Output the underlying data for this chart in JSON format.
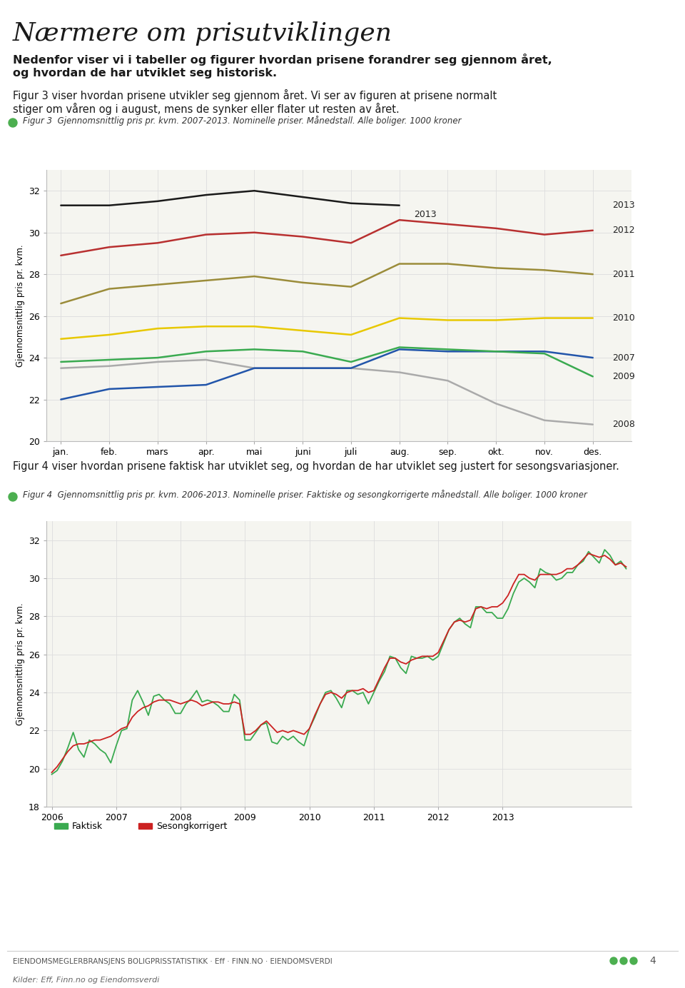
{
  "title_main": "Nærmere om prisutviklingen",
  "intro_text1": "Nedenfor viser vi i tabeller og figurer hvordan prisene forandrer seg gjennom året,",
  "intro_text2": "og hvordan de har utviklet seg historisk.",
  "fig3_desc": "Figur 3 viser hvordan prisene utvikler seg gjennom året. Vi ser av figuren at prisene normalt",
  "fig3_desc2": "stiger om våren og i august, mens de synker eller flater ut resten av året.",
  "fig3_label": "Figur 3  Gjennomsnittlig pris pr. kvm. 2007-2013. Nominelle priser. Månedstall. Alle boliger. 1000 kroner",
  "fig4_desc": "Figur 4 viser hvordan prisene faktisk har utviklet seg, og hvordan de har utviklet seg justert for sesongsvariasjoner.",
  "fig4_label": "Figur 4  Gjennomsnittlig pris pr. kvm. 2006-2013. Nominelle priser. Faktiske og sesongkorrigerte månedstall. Alle boliger. 1000 kroner",
  "ylabel": "Gjennomsnittlig pris pr. kvm.",
  "fig3_xlabel": [
    "jan.",
    "feb.",
    "mars",
    "apr.",
    "mai",
    "juni",
    "juli",
    "aug.",
    "sep.",
    "okt.",
    "nov.",
    "des."
  ],
  "fig3_ylim": [
    20,
    33
  ],
  "fig3_yticks": [
    20,
    22,
    24,
    26,
    28,
    30,
    32
  ],
  "fig4_ylim": [
    18,
    33
  ],
  "fig4_yticks": [
    18,
    20,
    22,
    24,
    26,
    28,
    30,
    32
  ],
  "fig3_series": {
    "2013": {
      "color": "#1a1a1a",
      "values": [
        31.3,
        31.3,
        31.5,
        31.8,
        32.0,
        31.7,
        31.4,
        31.3,
        null,
        null,
        null,
        null
      ],
      "label_idx": 7,
      "label_val": 31.3
    },
    "2012": {
      "color": "#b83030",
      "values": [
        28.9,
        29.3,
        29.5,
        29.9,
        30.0,
        29.8,
        29.5,
        30.6,
        30.4,
        30.2,
        29.9,
        30.1
      ],
      "label_idx": 11,
      "label_val": 30.1
    },
    "2011": {
      "color": "#9b8c3a",
      "values": [
        26.6,
        27.3,
        27.5,
        27.7,
        27.9,
        27.6,
        27.4,
        28.5,
        28.5,
        28.3,
        28.2,
        28.0
      ],
      "label_idx": 11,
      "label_val": 28.0
    },
    "2010": {
      "color": "#e8c800",
      "values": [
        24.9,
        25.1,
        25.4,
        25.5,
        25.5,
        25.3,
        25.1,
        25.9,
        25.8,
        25.8,
        25.9,
        25.9
      ],
      "label_idx": 11,
      "label_val": 25.9
    },
    "2009": {
      "color": "#3aaa50",
      "values": [
        23.8,
        23.9,
        24.0,
        24.3,
        24.4,
        24.3,
        23.8,
        24.5,
        24.4,
        24.3,
        24.2,
        23.1
      ],
      "label_idx": 11,
      "label_val": 23.1
    },
    "2007": {
      "color": "#2255aa",
      "values": [
        22.0,
        22.5,
        22.6,
        22.7,
        23.5,
        23.5,
        23.5,
        24.4,
        24.3,
        24.3,
        24.3,
        24.0
      ],
      "label_idx": 11,
      "label_val": 24.0
    },
    "2008": {
      "color": "#aaaaaa",
      "values": [
        23.5,
        23.6,
        23.8,
        23.9,
        23.5,
        23.5,
        23.5,
        23.3,
        22.9,
        21.8,
        21.0,
        20.8
      ],
      "label_idx": 11,
      "label_val": 20.8
    }
  },
  "fig4_faktisk": [
    19.7,
    19.9,
    20.4,
    21.1,
    21.9,
    21.0,
    20.6,
    21.5,
    21.3,
    21.0,
    20.8,
    20.3,
    21.2,
    22.0,
    22.1,
    23.6,
    24.1,
    23.5,
    22.8,
    23.8,
    23.9,
    23.6,
    23.4,
    22.9,
    22.9,
    23.4,
    23.7,
    24.1,
    23.5,
    23.6,
    23.5,
    23.3,
    23.0,
    23.0,
    23.9,
    23.6,
    21.5,
    21.5,
    21.9,
    22.3,
    22.4,
    21.4,
    21.3,
    21.7,
    21.5,
    21.7,
    21.4,
    21.2,
    22.1,
    22.7,
    23.4,
    24.0,
    24.1,
    23.7,
    23.2,
    24.1,
    24.1,
    23.9,
    24.0,
    23.4,
    24.0,
    24.6,
    25.1,
    25.9,
    25.8,
    25.3,
    25.0,
    25.9,
    25.8,
    25.8,
    25.9,
    25.7,
    25.9,
    26.6,
    27.3,
    27.7,
    27.9,
    27.6,
    27.4,
    28.5,
    28.5,
    28.2,
    28.2,
    27.9,
    27.9,
    28.4,
    29.2,
    29.8,
    30.0,
    29.8,
    29.5,
    30.5,
    30.3,
    30.2,
    29.9,
    30.0,
    30.3,
    30.3,
    30.7,
    30.9,
    31.4,
    31.1,
    30.8,
    31.5,
    31.2,
    30.7,
    30.9,
    30.5
  ],
  "fig4_sesong": [
    19.8,
    20.1,
    20.5,
    20.9,
    21.2,
    21.3,
    21.3,
    21.4,
    21.5,
    21.5,
    21.6,
    21.7,
    21.9,
    22.1,
    22.2,
    22.7,
    23.0,
    23.2,
    23.3,
    23.5,
    23.6,
    23.6,
    23.6,
    23.5,
    23.4,
    23.5,
    23.6,
    23.5,
    23.3,
    23.4,
    23.5,
    23.5,
    23.4,
    23.4,
    23.5,
    23.4,
    21.8,
    21.8,
    22.0,
    22.3,
    22.5,
    22.2,
    21.9,
    22.0,
    21.9,
    22.0,
    21.9,
    21.8,
    22.1,
    22.8,
    23.4,
    23.9,
    24.0,
    23.9,
    23.7,
    24.0,
    24.1,
    24.1,
    24.2,
    24.0,
    24.1,
    24.7,
    25.3,
    25.8,
    25.8,
    25.6,
    25.5,
    25.7,
    25.8,
    25.9,
    25.9,
    25.9,
    26.1,
    26.7,
    27.3,
    27.7,
    27.8,
    27.7,
    27.8,
    28.4,
    28.5,
    28.4,
    28.5,
    28.5,
    28.7,
    29.1,
    29.7,
    30.2,
    30.2,
    30.0,
    29.9,
    30.2,
    30.2,
    30.2,
    30.2,
    30.3,
    30.5,
    30.5,
    30.7,
    31.0,
    31.3,
    31.2,
    31.1,
    31.2,
    31.0,
    30.7,
    30.8,
    30.6
  ],
  "footer_text": "EIENDOMSMEGLERBRANSJENS BOLIGPRISSTATISTIKK · Eff · FINN.NO · EIENDOMSVERDI",
  "footer_source": "Kilder: Eff, Finn.no og Eiendomsverdi",
  "page_number": "4",
  "bg_color": "#ffffff",
  "chart_bg": "#f5f5f0",
  "grid_color": "#dddddd",
  "dot_color": "#4caf50",
  "legend_faktisk_color": "#3aaa50",
  "legend_sesong_color": "#cc2222"
}
